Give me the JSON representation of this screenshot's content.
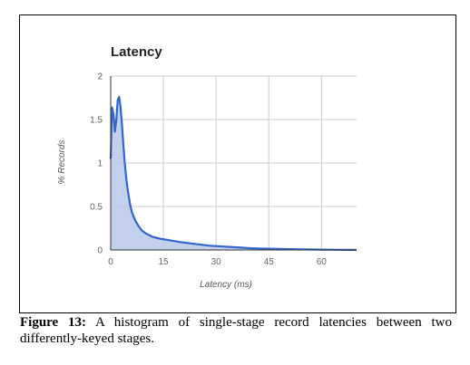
{
  "caption": {
    "label": "Figure 13:",
    "text": "A histogram of single-stage record latencies between two differently-keyed stages."
  },
  "colors": {
    "line": "#3366cc",
    "fill": "#b8c8ea",
    "grid": "#cccccc",
    "axis": "#333333"
  },
  "chart_data": {
    "type": "area",
    "title": "Latency",
    "xlabel": "Latency (ms)",
    "ylabel": "% Records",
    "xlim": [
      0,
      70
    ],
    "ylim": [
      0,
      2
    ],
    "x_ticks": [
      0,
      15,
      30,
      45,
      60
    ],
    "y_ticks": [
      0,
      0.5,
      1,
      1.5,
      2
    ],
    "grid": true,
    "series": [
      {
        "x": [
          0,
          0.4,
          0.8,
          1.2,
          1.6,
          2,
          2.4,
          2.8,
          3.2,
          3.6,
          4,
          4.5,
          5,
          5.5,
          6,
          7,
          8,
          9,
          10,
          12,
          14,
          17,
          20,
          24,
          28,
          32,
          36,
          40,
          45,
          50,
          55,
          60,
          65,
          70
        ],
        "y": [
          1.05,
          1.64,
          1.56,
          1.36,
          1.5,
          1.72,
          1.76,
          1.65,
          1.45,
          1.22,
          1.0,
          0.8,
          0.65,
          0.53,
          0.44,
          0.34,
          0.27,
          0.22,
          0.19,
          0.15,
          0.13,
          0.11,
          0.09,
          0.07,
          0.05,
          0.04,
          0.03,
          0.02,
          0.015,
          0.01,
          0.006,
          0.004,
          0.002,
          0.001
        ]
      }
    ]
  }
}
